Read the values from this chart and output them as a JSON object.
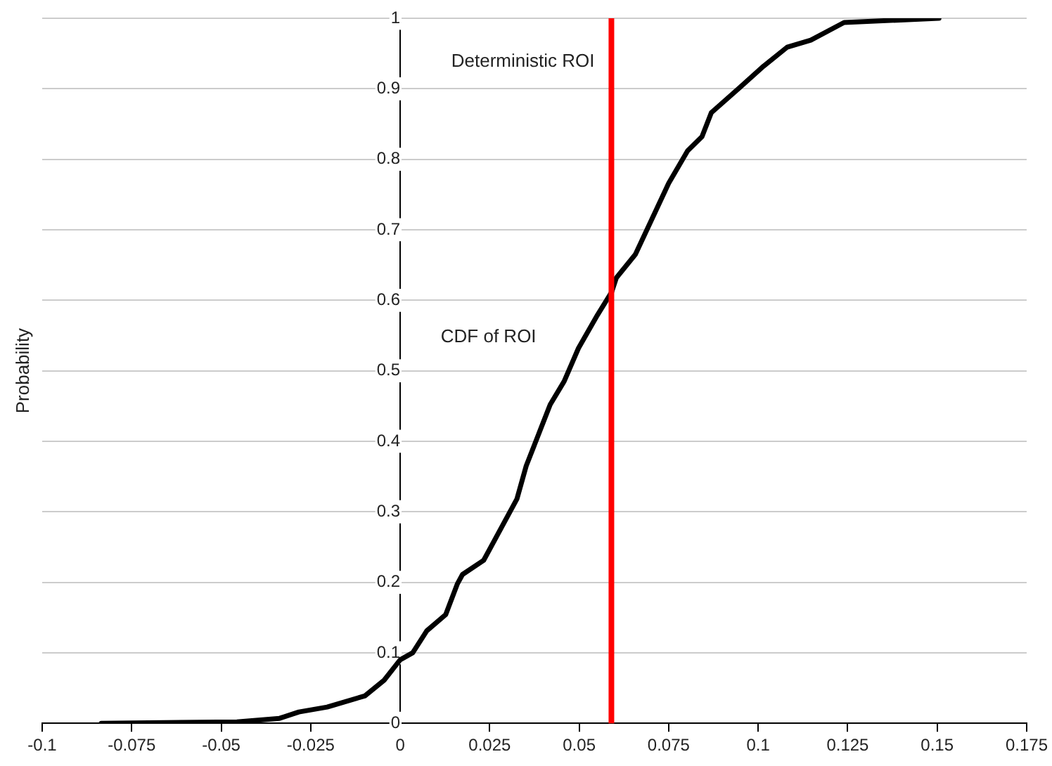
{
  "chart_data": {
    "type": "line",
    "ylabel": "Probability",
    "xlim": [
      -0.1,
      0.175
    ],
    "xticks": [
      -0.1,
      -0.075,
      -0.05,
      -0.025,
      0,
      0.025,
      0.05,
      0.075,
      0.1,
      0.125,
      0.15,
      0.175
    ],
    "ylim": [
      0,
      1
    ],
    "yticks": [
      0,
      0.1,
      0.2,
      0.3,
      0.4,
      0.5,
      0.6,
      0.7,
      0.8,
      0.9,
      1
    ],
    "grid": "y",
    "legend": false,
    "marker": "none",
    "line_style": "solid",
    "series": [
      {
        "name": "CDF of ROI",
        "color": "#000000",
        "x": [
          -0.0835,
          -0.0456,
          -0.0337,
          -0.0283,
          -0.0204,
          -0.0098,
          -0.0045,
          0,
          0.0035,
          0.0074,
          0.0127,
          0.016,
          0.0174,
          0.0233,
          0.0326,
          0.0352,
          0.0419,
          0.0458,
          0.0498,
          0.0551,
          0.0591,
          0.0604,
          0.0657,
          0.075,
          0.0803,
          0.0843,
          0.0869,
          0.0949,
          0.1015,
          0.1081,
          0.1147,
          0.124,
          0.1505
        ],
        "values": [
          0,
          0.002,
          0.007,
          0.016,
          0.023,
          0.039,
          0.061,
          0.09,
          0.1,
          0.131,
          0.154,
          0.198,
          0.211,
          0.231,
          0.318,
          0.365,
          0.452,
          0.485,
          0.532,
          0.579,
          0.612,
          0.632,
          0.665,
          0.766,
          0.812,
          0.832,
          0.866,
          0.902,
          0.932,
          0.959,
          0.969,
          0.994,
          1
        ]
      }
    ],
    "ref_lines": [
      {
        "axis": "x",
        "value": 0.059,
        "label": "Deterministic ROI",
        "color": "#ff0000"
      }
    ]
  }
}
